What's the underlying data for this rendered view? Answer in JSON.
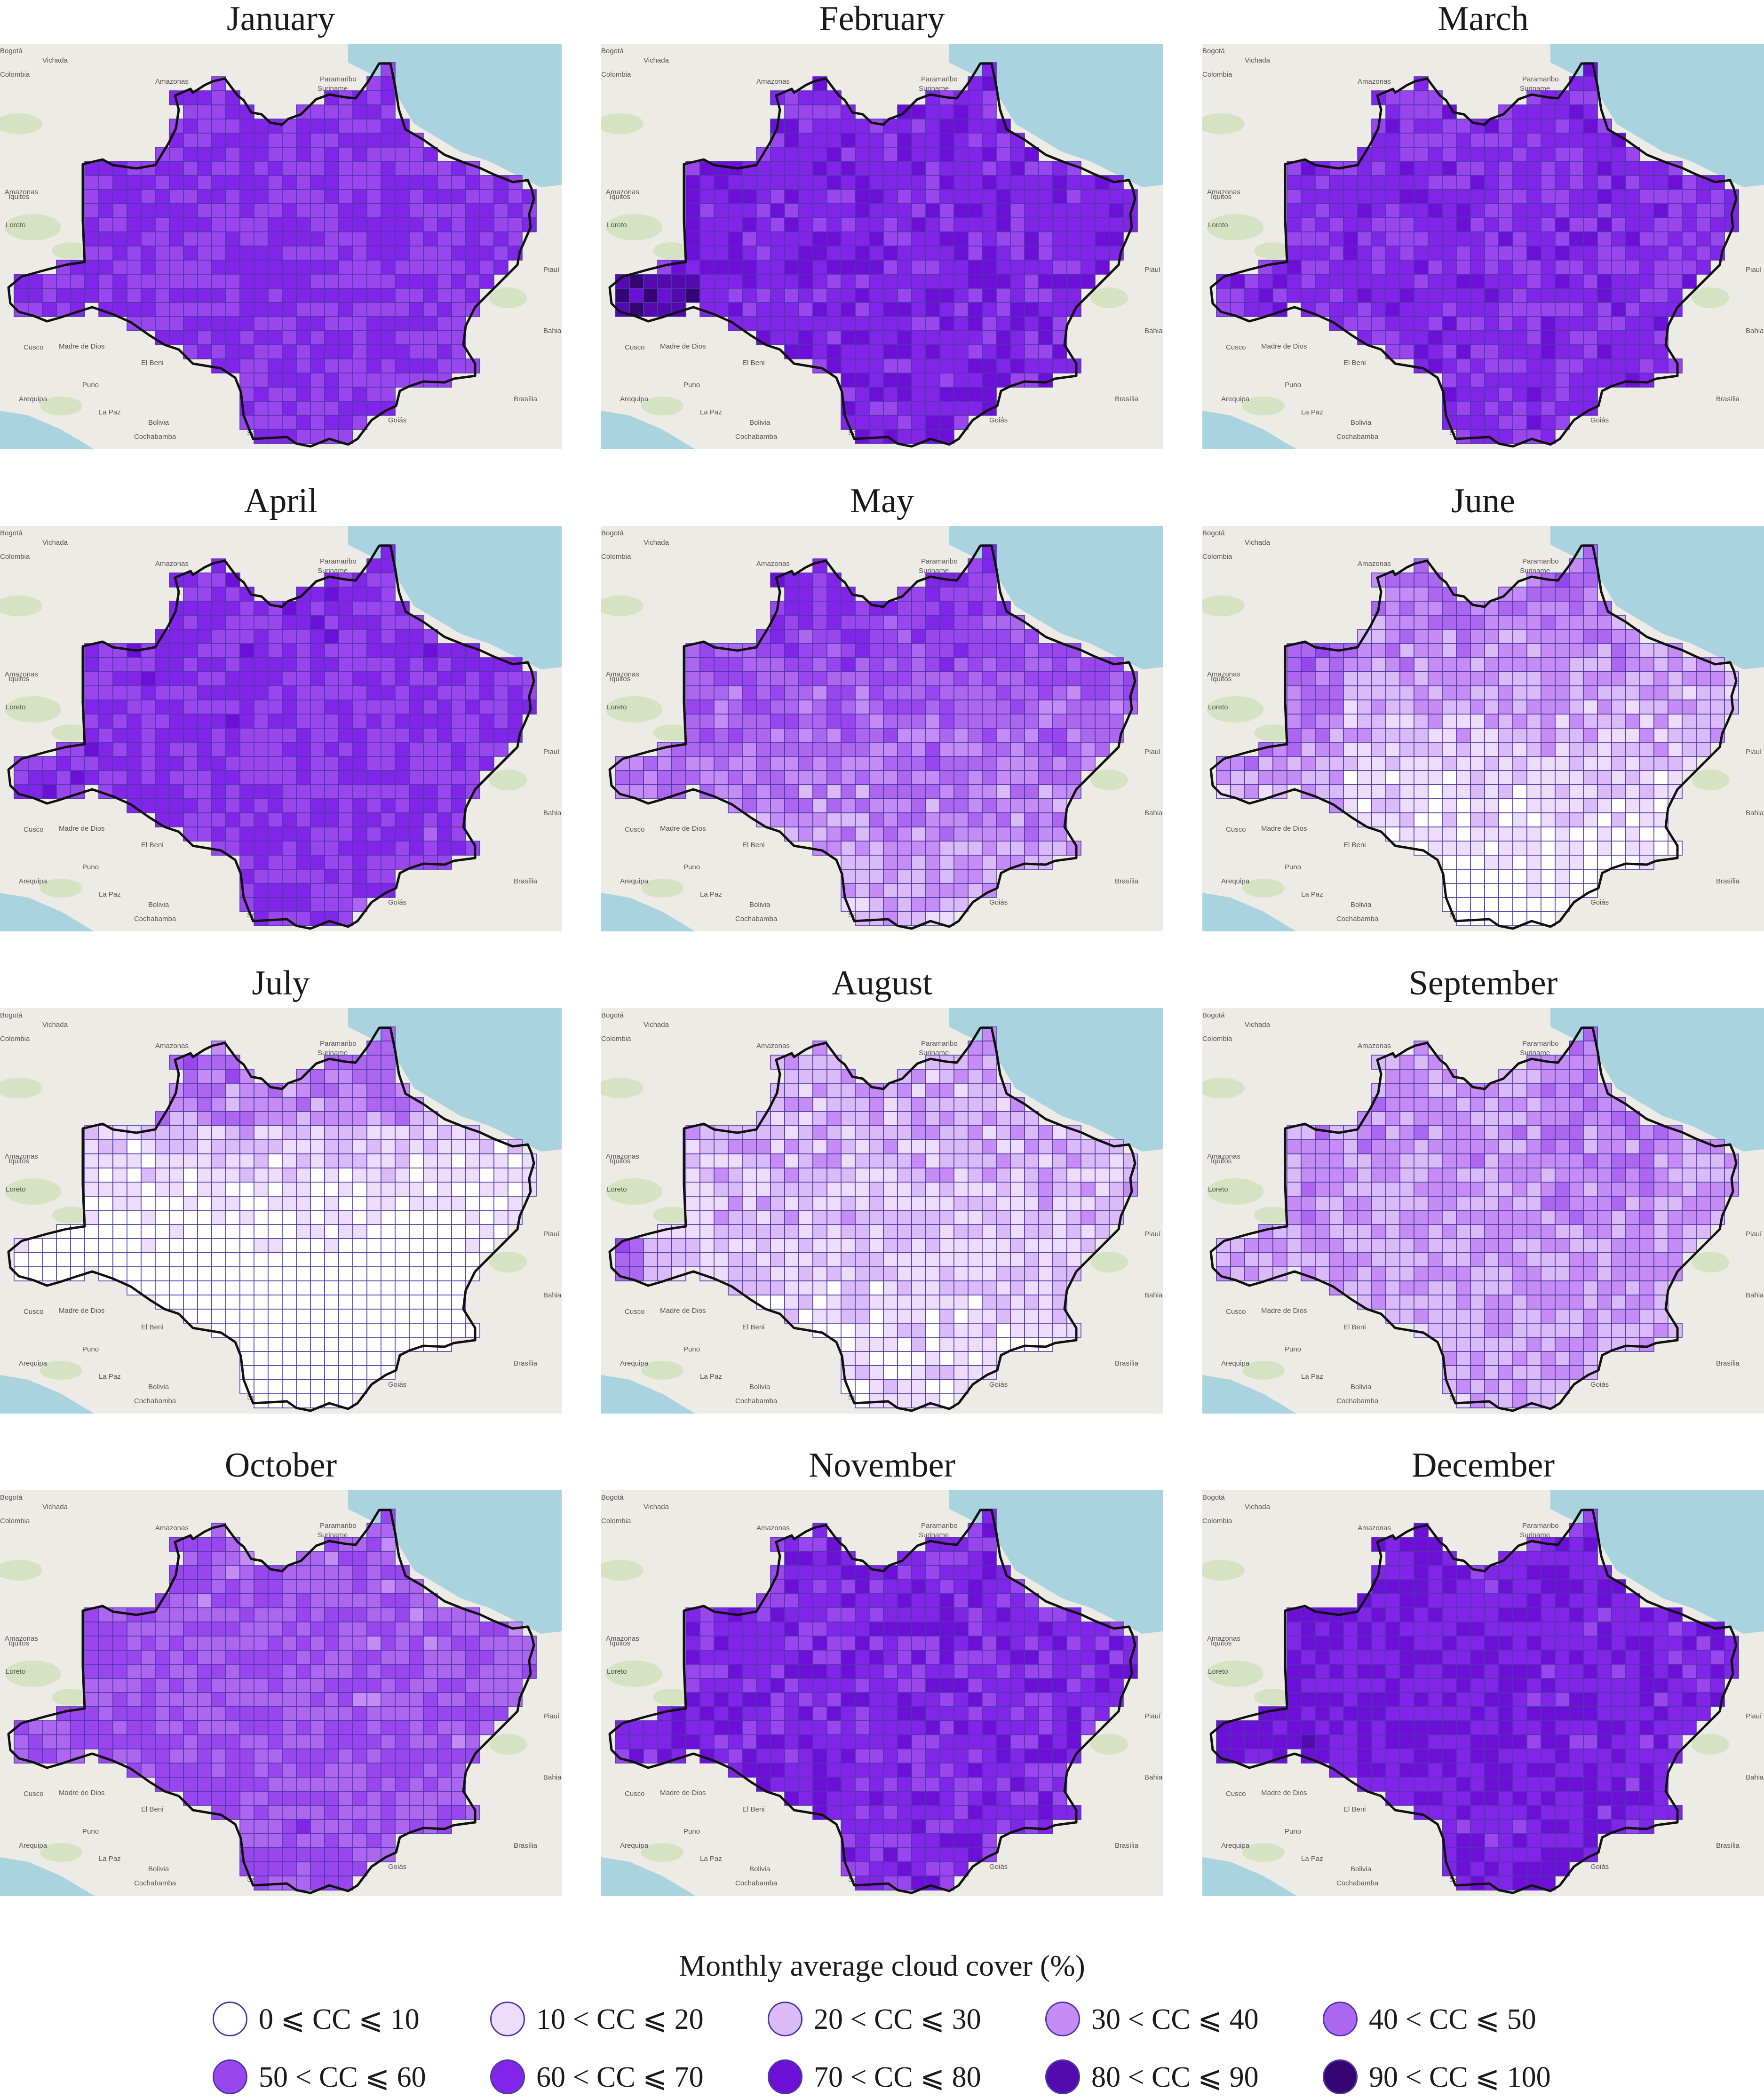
{
  "months": [
    "January",
    "February",
    "March",
    "April",
    "May",
    "June",
    "July",
    "August",
    "September",
    "October",
    "November",
    "December"
  ],
  "base_map_labels": [
    "Bogotá",
    "Colombia",
    "Vichada",
    "Paramaribo",
    "Suriname",
    "Guyane",
    "Amazonas",
    "Amazonas",
    "Iquitos",
    "Loreto",
    "Ucayali",
    "Cusco",
    "Madre de Dios",
    "El Beni",
    "Puno",
    "Arequipa",
    "La Paz",
    "Bolivia",
    "Cochabamba",
    "Santa Cruz",
    "Goiás",
    "Brasília",
    "Piauí",
    "Bahia"
  ],
  "legend": {
    "title": "Monthly average cloud cover (%)",
    "classes": [
      {
        "label": "0 ⩽ CC ⩽ 10",
        "color": "#ffffff"
      },
      {
        "label": "10 < CC ⩽ 20",
        "color": "#eedcfb"
      },
      {
        "label": "20 < CC ⩽ 30",
        "color": "#dbbaf8"
      },
      {
        "label": "30 < CC ⩽ 40",
        "color": "#c48cf4"
      },
      {
        "label": "40 < CC ⩽ 50",
        "color": "#ad66f0"
      },
      {
        "label": "50 < CC ⩽ 60",
        "color": "#9a46ee"
      },
      {
        "label": "60 < CC ⩽ 70",
        "color": "#8125e8"
      },
      {
        "label": "70 < CC ⩽ 80",
        "color": "#6c10d8"
      },
      {
        "label": "80 < CC ⩽ 90",
        "color": "#530bb0"
      },
      {
        "label": "90 < CC ⩽ 100",
        "color": "#350672"
      }
    ]
  },
  "colors": {
    "ocean": "#a9d3df",
    "land": "#ecebe5",
    "grid_line": "#4b3aa6",
    "boundary": "#111111"
  }
}
